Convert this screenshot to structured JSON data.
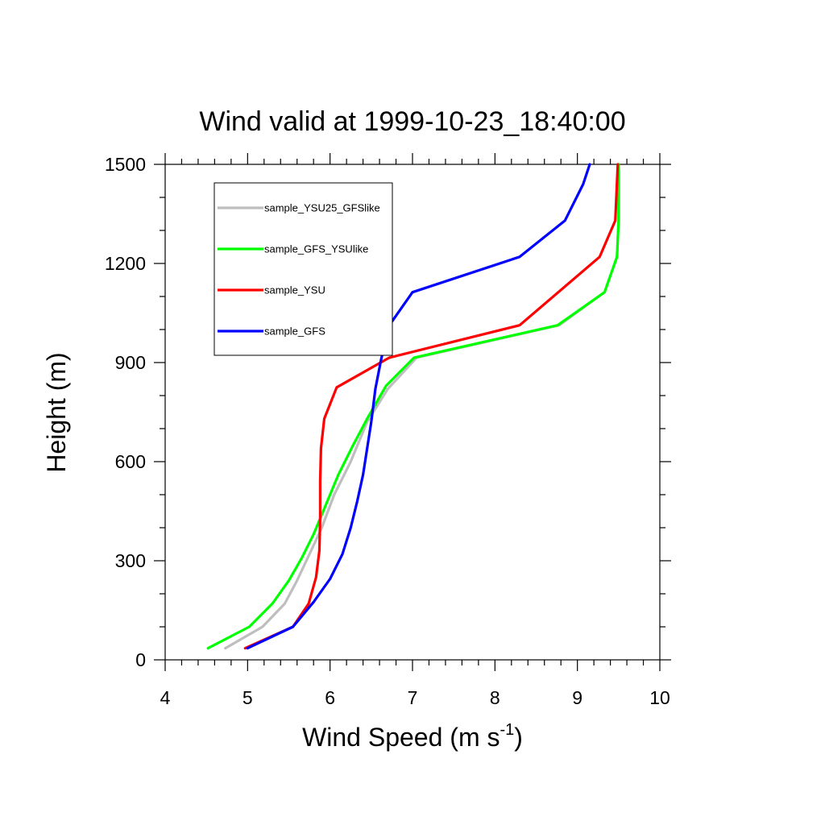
{
  "chart_data": {
    "type": "line",
    "title": "Wind valid at 1999-10-23_18:40:00",
    "xlabel": "Wind Speed (m s",
    "xlabel_sup": "-1",
    "xlabel_tail": ")",
    "ylabel": "Height (m)",
    "xlim": [
      4,
      10
    ],
    "ylim": [
      0,
      1500
    ],
    "xticks": [
      "4",
      "5",
      "6",
      "7",
      "8",
      "9",
      "10"
    ],
    "yticks": [
      "0",
      "300",
      "600",
      "900",
      "1200",
      "1500"
    ],
    "legend_position": "top-left",
    "grid": false,
    "series": [
      {
        "name": "sample_YSU25_GFSlike",
        "color": "#bebebe",
        "x": [
          4.73,
          5.18,
          5.45,
          5.6,
          5.75,
          5.9,
          6.05,
          6.25,
          6.45,
          6.7,
          7.05,
          8.78,
          9.33,
          9.48,
          9.5,
          9.5
        ],
        "y": [
          35,
          100,
          170,
          240,
          320,
          400,
          500,
          600,
          720,
          820,
          915,
          1013,
          1113,
          1220,
          1330,
          1500
        ]
      },
      {
        "name": "sample_GFS_YSUlike",
        "color": "#00ff00",
        "x": [
          4.52,
          5.02,
          5.3,
          5.5,
          5.66,
          5.8,
          5.95,
          6.1,
          6.28,
          6.45,
          6.68,
          7.02,
          8.76,
          9.33,
          9.48,
          9.5,
          9.5
        ],
        "y": [
          35,
          100,
          170,
          240,
          310,
          380,
          470,
          560,
          650,
          730,
          830,
          915,
          1013,
          1113,
          1220,
          1330,
          1500
        ]
      },
      {
        "name": "sample_YSU",
        "color": "#ff0000",
        "x": [
          4.97,
          5.55,
          5.74,
          5.83,
          5.87,
          5.88,
          5.88,
          5.89,
          5.93,
          6.08,
          6.72,
          8.3,
          9.27,
          9.46,
          9.49
        ],
        "y": [
          35,
          100,
          170,
          250,
          330,
          430,
          540,
          640,
          730,
          825,
          915,
          1013,
          1220,
          1330,
          1500
        ]
      },
      {
        "name": "sample_GFS",
        "color": "#0000ff",
        "x": [
          5.0,
          5.55,
          5.8,
          6.0,
          6.15,
          6.25,
          6.33,
          6.4,
          6.45,
          6.5,
          6.55,
          6.62,
          6.72,
          7.0,
          8.3,
          8.85,
          9.07,
          9.15
        ],
        "y": [
          35,
          100,
          175,
          245,
          320,
          400,
          480,
          560,
          640,
          720,
          820,
          910,
          1013,
          1113,
          1220,
          1330,
          1440,
          1500
        ]
      }
    ]
  }
}
